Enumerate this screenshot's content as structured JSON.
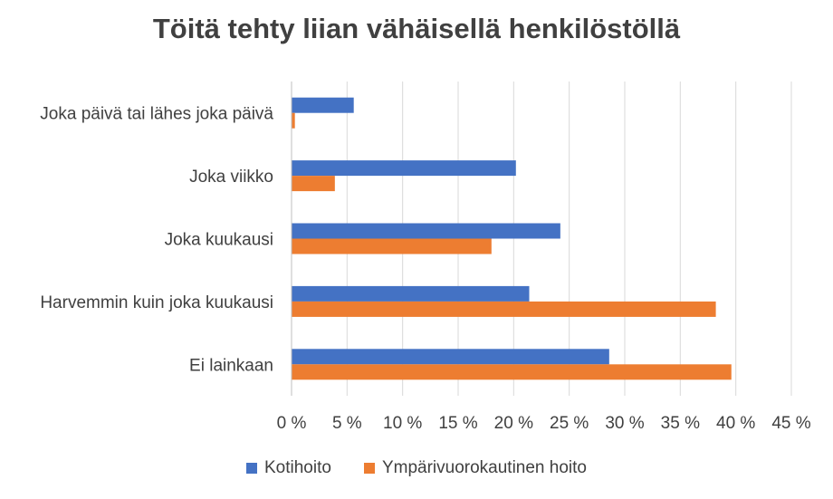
{
  "chart_data": {
    "type": "bar",
    "orientation": "horizontal",
    "title": "Töitä tehty liian vähäisellä henkilöstöllä",
    "categories": [
      "Joka päivä tai lähes joka päivä",
      "Joka viikko",
      "Joka kuukausi",
      "Harvemmin kuin joka kuukausi",
      "Ei lainkaan"
    ],
    "series": [
      {
        "name": "Kotihoito",
        "color": "#4472C4",
        "values": [
          5.6,
          20.2,
          24.2,
          21.4,
          28.6
        ]
      },
      {
        "name": "Ympärivuorokautinen hoito",
        "color": "#ED7D31",
        "values": [
          0.3,
          3.9,
          18.0,
          38.2,
          39.6
        ]
      }
    ],
    "xlim": [
      0,
      45
    ],
    "xticks": [
      "0 %",
      "5 %",
      "10 %",
      "15 %",
      "20 %",
      "25 %",
      "30 %",
      "35 %",
      "40 %",
      "45 %"
    ],
    "grid": true,
    "legend_position": "bottom"
  }
}
